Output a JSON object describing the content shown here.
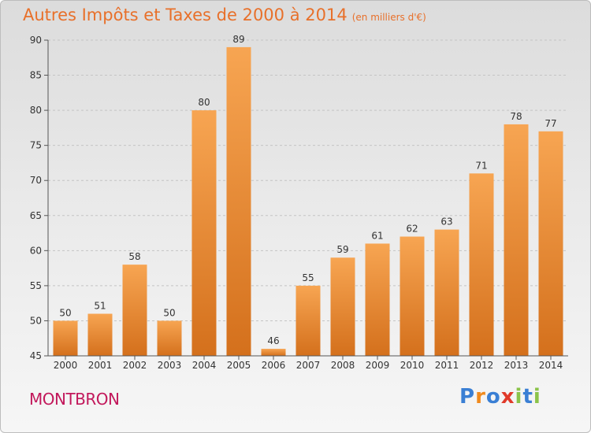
{
  "page_title": "Autres Impôts et Taxes de 2000 à 2014",
  "page_subtitle": "(en milliers d'€)",
  "commune": "MONTBRON",
  "logo": {
    "text": "Proxiti",
    "letters": [
      {
        "char": "P",
        "color": "#3a7fd4"
      },
      {
        "char": "r",
        "color": "#f08a1e"
      },
      {
        "char": "o",
        "color": "#3a7fd4"
      },
      {
        "char": "x",
        "color": "#e03a2a"
      },
      {
        "char": "i",
        "color": "#8bc34a"
      },
      {
        "char": "t",
        "color": "#3a7fd4"
      },
      {
        "char": "i",
        "color": "#8bc34a"
      }
    ]
  },
  "colors": {
    "title": "#e8702a",
    "commune": "#c2185b",
    "bar_light": "#f7a552",
    "bar_dark": "#d4701c",
    "axis": "#555555",
    "grid": "#c4c4c4"
  },
  "chart_data": {
    "type": "bar",
    "title": "Autres Impôts et Taxes de 2000 à 2014",
    "subtitle": "(en milliers d'€)",
    "xlabel": "",
    "ylabel": "",
    "categories": [
      "2000",
      "2001",
      "2002",
      "2003",
      "2004",
      "2005",
      "2006",
      "2007",
      "2008",
      "2009",
      "2010",
      "2011",
      "2012",
      "2013",
      "2014"
    ],
    "values": [
      50,
      51,
      58,
      50,
      80,
      89,
      46,
      55,
      59,
      61,
      62,
      63,
      71,
      78,
      77
    ],
    "ylim": [
      45,
      90
    ],
    "yticks": [
      45,
      50,
      55,
      60,
      65,
      70,
      75,
      80,
      85,
      90
    ],
    "grid": true,
    "data_labels": true
  }
}
